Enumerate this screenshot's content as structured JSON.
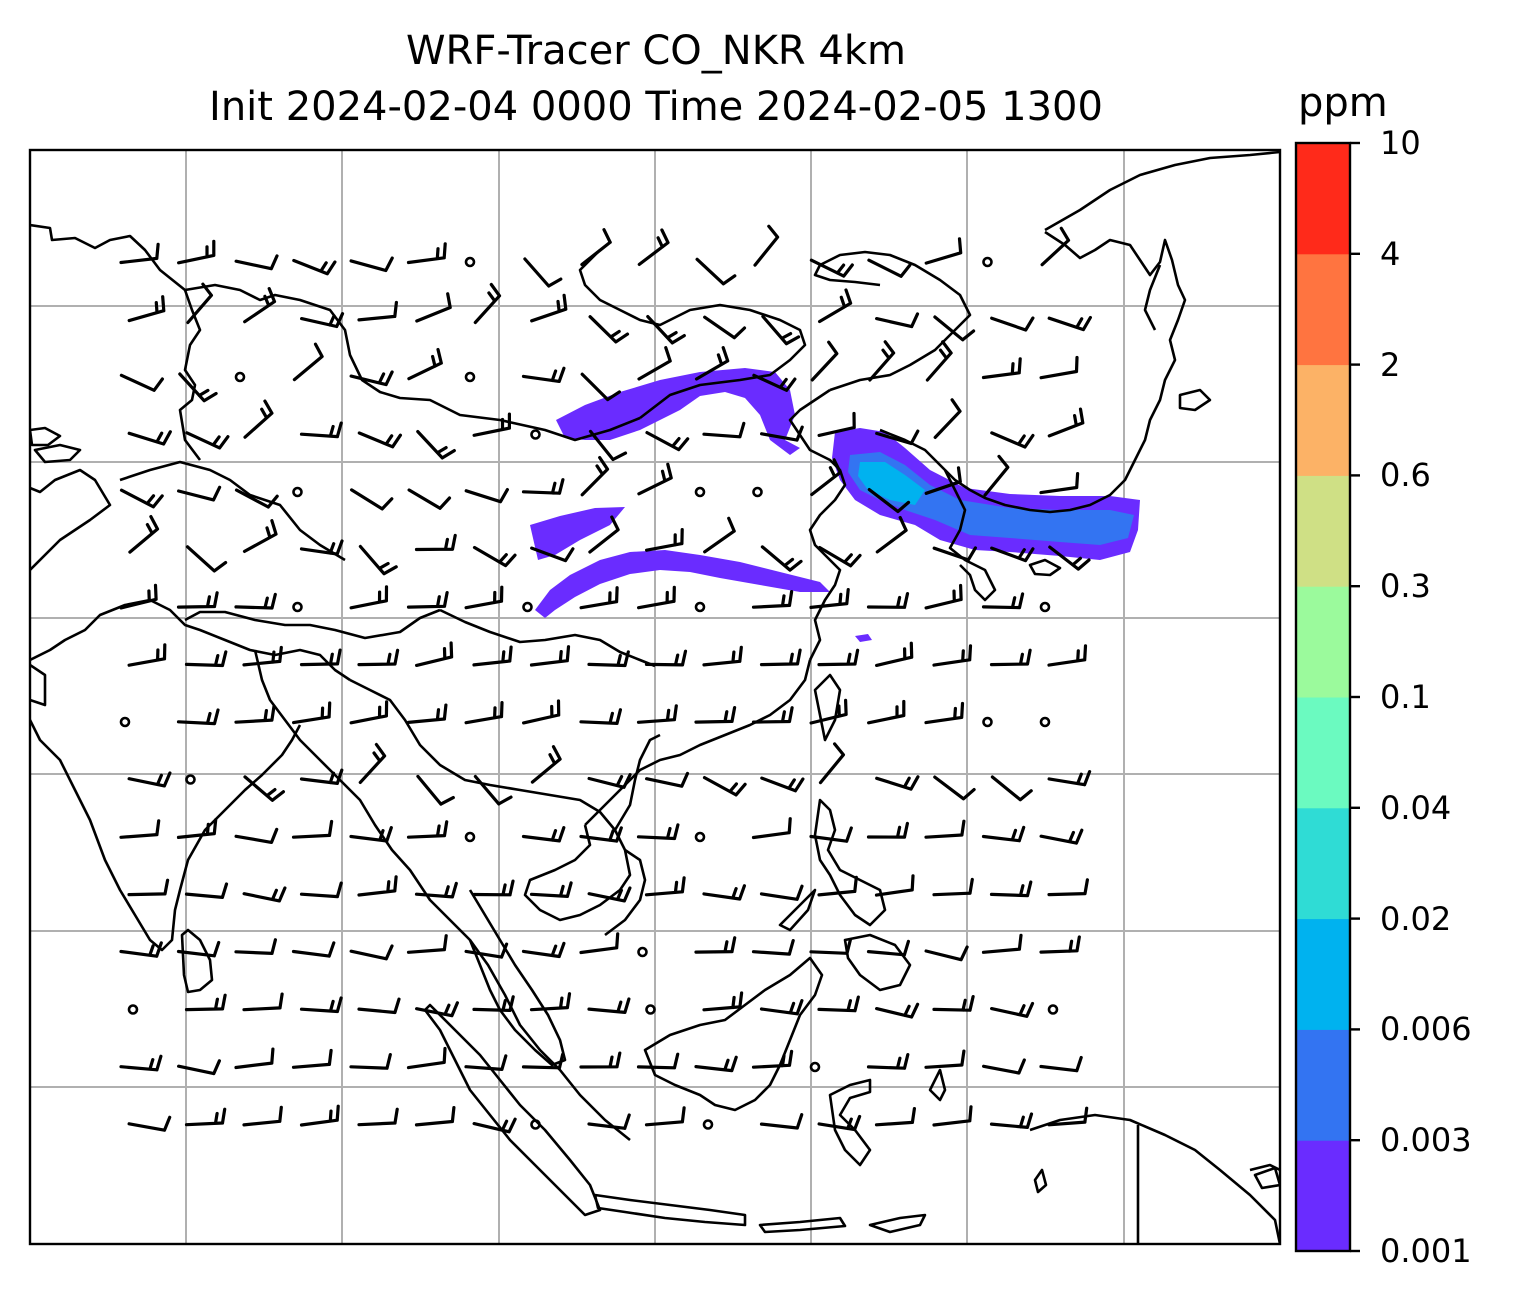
{
  "title": {
    "line1": "WRF-Tracer CO_NKR 4km",
    "line2": "Init 2024-02-04 0000 Time 2024-02-05 1300"
  },
  "map": {
    "features": [
      "coastlines",
      "lat-lon-gridlines",
      "wind-barbs",
      "tracer-concentration-shading"
    ],
    "wind_barb_color": "#000000",
    "gridline_color": "#b0b0b0"
  },
  "colorbar": {
    "unit": "ppm",
    "ticks": [
      "0.001",
      "0.003",
      "0.006",
      "0.02",
      "0.04",
      "0.1",
      "0.3",
      "0.6",
      "2",
      "4",
      "10"
    ],
    "colors": [
      "#6a2cff",
      "#3374f2",
      "#00b2ef",
      "#2fdcd5",
      "#6bfac0",
      "#9bfa9c",
      "#cfe085",
      "#fcb266",
      "#ff7440",
      "#ff2a1a"
    ]
  }
}
